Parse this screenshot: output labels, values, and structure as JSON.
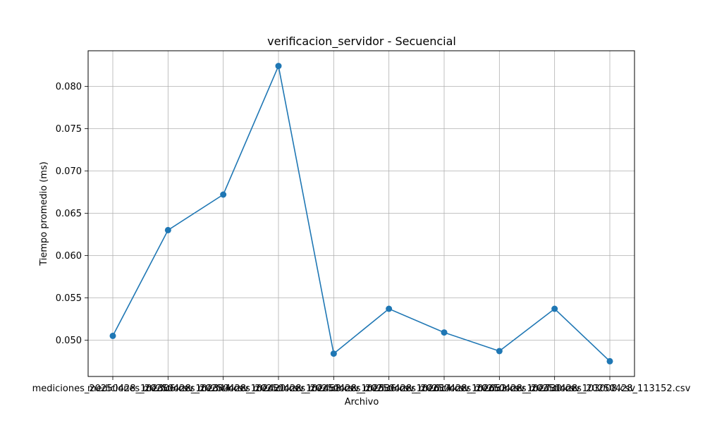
{
  "chart_data": {
    "type": "line",
    "title": "verificacion_servidor - Secuencial",
    "xlabel": "Archivo",
    "ylabel": "Tiempo promedio (ms)",
    "categories": [
      "mediciones_20250428_102306.csv",
      "mediciones_20250428_102344.csv",
      "mediciones_20250428_102420.csv",
      "mediciones_20250428_102458.csv",
      "mediciones_20250428_102536.csv",
      "mediciones_20250428_102614.csv",
      "mediciones_20250428_102652.csv",
      "mediciones_20250428_102730.csv",
      "mediciones_20250428_103008.csv",
      "mediciones_20250428_113152.csv"
    ],
    "series": [
      {
        "values": [
          0.0505,
          0.063,
          0.0672,
          0.0824,
          0.0484,
          0.0537,
          0.0509,
          0.0487,
          0.0537,
          0.0475
        ],
        "color": "#1f77b4"
      }
    ],
    "ylim": [
      0.0457,
      0.0842
    ],
    "yticks": [
      0.05,
      0.055,
      0.06,
      0.065,
      0.07,
      0.075,
      0.08
    ],
    "ytick_labels": [
      "0.050",
      "0.055",
      "0.060",
      "0.065",
      "0.070",
      "0.075",
      "0.080"
    ],
    "grid": true,
    "line_color": "#1f77b4"
  }
}
